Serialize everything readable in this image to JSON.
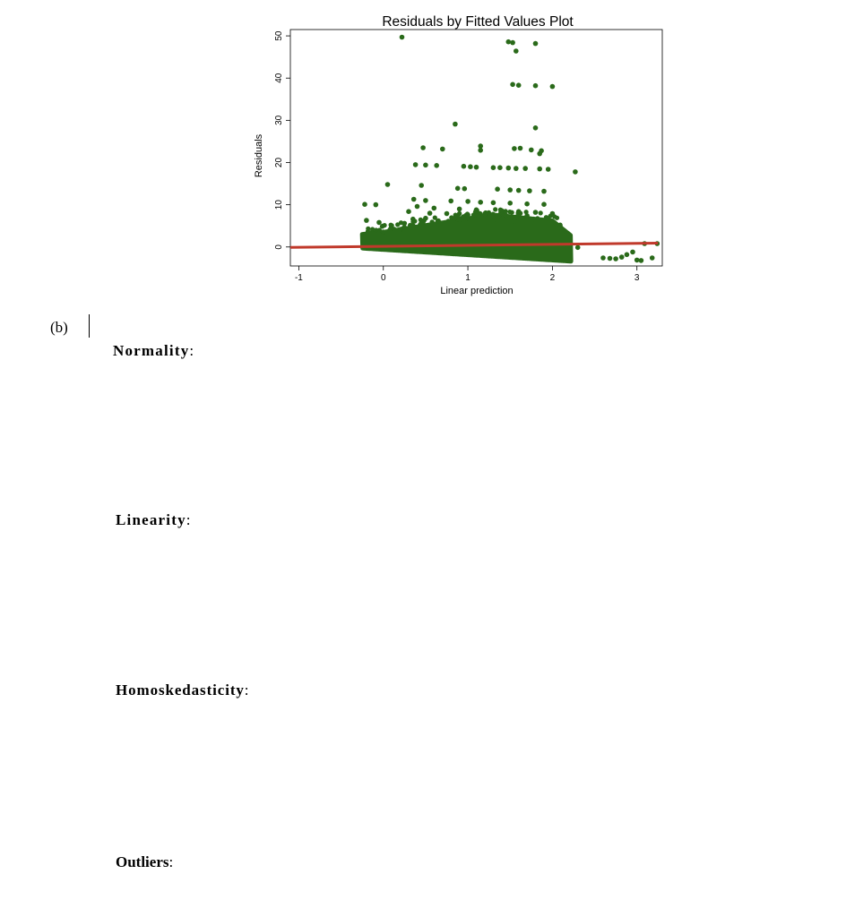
{
  "chart_data": {
    "type": "scatter",
    "title": "Residuals by Fitted Values Plot",
    "xlabel": "Linear prediction",
    "ylabel": "Residuals",
    "xlim": [
      -1.1,
      3.3
    ],
    "ylim": [
      -4.5,
      51.5
    ],
    "xticks": [
      -1,
      0,
      1,
      2,
      3
    ],
    "xtick_labels": [
      "-1",
      "0",
      "1",
      "2",
      "3"
    ],
    "yticks": [
      0,
      10,
      20,
      30,
      40,
      50
    ],
    "ytick_labels": [
      "0",
      "10",
      "20",
      "30",
      "40",
      "50"
    ],
    "grid": false,
    "point_color": "#2a6a1a",
    "fit_line_color": "#c0392b",
    "fit_line": {
      "x": [
        -1.1,
        3.25
      ],
      "y": [
        -0.1,
        0.9
      ]
    },
    "points": [
      [
        0.22,
        49.7
      ],
      [
        1.48,
        48.6
      ],
      [
        1.53,
        48.4
      ],
      [
        1.8,
        48.2
      ],
      [
        1.57,
        46.4
      ],
      [
        1.53,
        38.5
      ],
      [
        1.6,
        38.3
      ],
      [
        1.8,
        38.2
      ],
      [
        2.0,
        38.0
      ],
      [
        0.85,
        29.1
      ],
      [
        1.8,
        28.2
      ],
      [
        0.47,
        23.5
      ],
      [
        0.7,
        23.2
      ],
      [
        1.15,
        23.9
      ],
      [
        1.15,
        22.9
      ],
      [
        1.55,
        23.3
      ],
      [
        1.62,
        23.4
      ],
      [
        1.75,
        23.0
      ],
      [
        1.87,
        22.8
      ],
      [
        1.85,
        22.1
      ],
      [
        0.38,
        19.5
      ],
      [
        0.5,
        19.4
      ],
      [
        0.63,
        19.3
      ],
      [
        0.95,
        19.1
      ],
      [
        1.03,
        19.0
      ],
      [
        1.1,
        18.9
      ],
      [
        1.3,
        18.8
      ],
      [
        1.38,
        18.8
      ],
      [
        1.48,
        18.7
      ],
      [
        1.57,
        18.6
      ],
      [
        1.68,
        18.6
      ],
      [
        1.85,
        18.5
      ],
      [
        1.95,
        18.4
      ],
      [
        2.27,
        17.8
      ],
      [
        0.05,
        14.8
      ],
      [
        0.45,
        14.6
      ],
      [
        0.88,
        13.9
      ],
      [
        0.96,
        13.8
      ],
      [
        1.35,
        13.7
      ],
      [
        1.5,
        13.5
      ],
      [
        1.6,
        13.4
      ],
      [
        1.73,
        13.3
      ],
      [
        1.9,
        13.2
      ],
      [
        -0.22,
        10.1
      ],
      [
        -0.09,
        10.0
      ],
      [
        0.36,
        11.3
      ],
      [
        0.5,
        11.0
      ],
      [
        0.8,
        10.9
      ],
      [
        1.0,
        10.8
      ],
      [
        1.15,
        10.6
      ],
      [
        1.3,
        10.5
      ],
      [
        1.5,
        10.4
      ],
      [
        1.7,
        10.2
      ],
      [
        1.9,
        10.1
      ],
      [
        0.4,
        9.6
      ],
      [
        0.6,
        9.2
      ],
      [
        0.9,
        9.0
      ],
      [
        1.1,
        8.8
      ],
      [
        1.4,
        8.6
      ],
      [
        1.6,
        8.4
      ],
      [
        1.8,
        8.2
      ],
      [
        0.3,
        8.4
      ],
      [
        0.55,
        8.0
      ],
      [
        0.75,
        7.9
      ],
      [
        1.0,
        7.6
      ],
      [
        1.2,
        7.8
      ],
      [
        1.45,
        7.5
      ],
      [
        1.7,
        7.4
      ],
      [
        2.0,
        7.9
      ],
      [
        -0.2,
        6.3
      ],
      [
        -0.05,
        5.8
      ],
      [
        0.25,
        5.6
      ],
      [
        0.35,
        6.6
      ],
      [
        0.5,
        6.8
      ],
      [
        0.65,
        6.2
      ],
      [
        0.9,
        6.5
      ],
      [
        1.3,
        6.3
      ],
      [
        1.55,
        6.1
      ],
      [
        1.75,
        5.9
      ],
      [
        2.6,
        -2.6
      ],
      [
        2.68,
        -2.7
      ],
      [
        2.75,
        -2.8
      ],
      [
        2.82,
        -2.4
      ],
      [
        2.88,
        -1.8
      ],
      [
        2.95,
        -1.2
      ],
      [
        3.0,
        -3.1
      ],
      [
        3.05,
        -3.2
      ],
      [
        3.18,
        -2.6
      ],
      [
        3.09,
        0.8
      ],
      [
        3.24,
        0.8
      ],
      [
        2.3,
        -0.1
      ]
    ]
  },
  "labels": {
    "part": "(b)",
    "normality": "Normality",
    "linearity": "Linearity",
    "homoskedasticity": "Homoskedasticity",
    "outliers": "Outliers",
    "colon": ":"
  }
}
